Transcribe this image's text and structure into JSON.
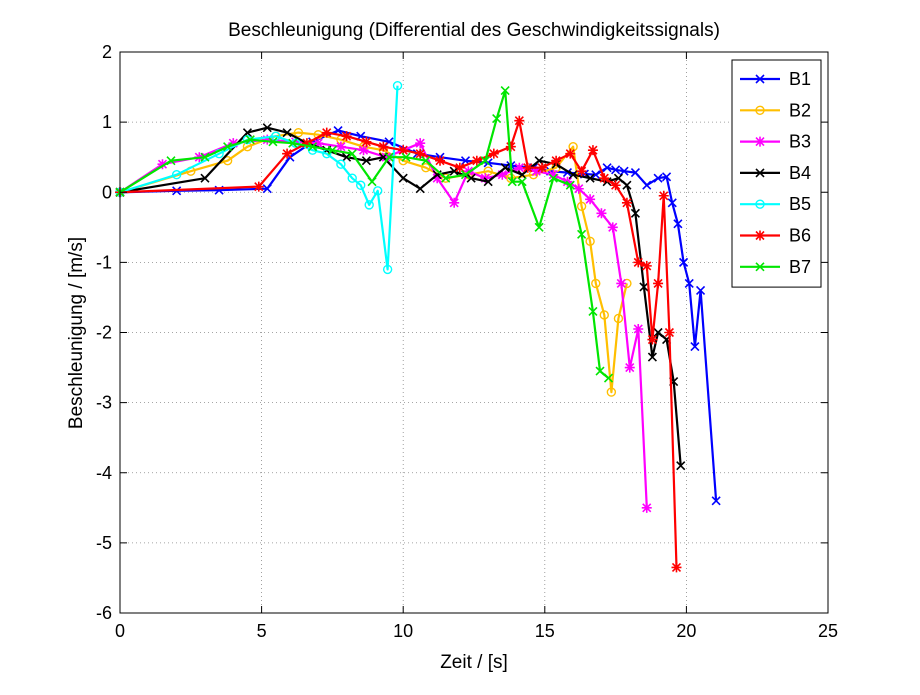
{
  "chart_data": {
    "type": "line",
    "title": "Beschleunigung (Differential des Geschwindigkeitssignals)",
    "xlabel": "Zeit / [s]",
    "ylabel": "Beschleunigung / [m/s]",
    "xlim": [
      0,
      25
    ],
    "ylim": [
      -6,
      2
    ],
    "xticks": [
      0,
      5,
      10,
      15,
      20,
      25
    ],
    "yticks": [
      -6,
      -5,
      -4,
      -3,
      -2,
      -1,
      0,
      1,
      2
    ],
    "grid": true,
    "legend_position": "top-right",
    "series": [
      {
        "name": "B1",
        "color": "#0000ff",
        "marker": "x",
        "x": [
          0,
          2,
          3.5,
          5.2,
          6,
          6.8,
          7.7,
          8.5,
          9.5,
          10.5,
          11.3,
          12.2,
          13,
          13.8,
          14.6,
          15.2,
          15.8,
          16.4,
          16.8,
          17.2,
          17.5,
          17.8,
          18.2,
          18.6,
          19.0,
          19.3,
          19.5,
          19.7,
          19.9,
          20.1,
          20.3,
          20.5,
          21.05
        ],
        "y": [
          0,
          0.02,
          0.03,
          0.05,
          0.5,
          0.72,
          0.88,
          0.8,
          0.72,
          0.55,
          0.5,
          0.45,
          0.42,
          0.38,
          0.35,
          0.3,
          0.28,
          0.26,
          0.25,
          0.35,
          0.32,
          0.3,
          0.28,
          0.1,
          0.2,
          0.22,
          -0.15,
          -0.45,
          -1.0,
          -1.3,
          -2.2,
          -1.4,
          -4.4
        ]
      },
      {
        "name": "B2",
        "color": "#ffbf00",
        "marker": "o",
        "x": [
          0,
          2.5,
          3.8,
          4.5,
          5.5,
          6.3,
          7.0,
          7.8,
          8.6,
          9.3,
          10.0,
          10.8,
          11.5,
          12.3,
          13.0,
          13.8,
          14.6,
          15.4,
          16.0,
          16.3,
          16.6,
          16.8,
          17.1,
          17.35,
          17.6,
          17.9
        ],
        "y": [
          0,
          0.3,
          0.45,
          0.65,
          0.8,
          0.85,
          0.82,
          0.75,
          0.65,
          0.6,
          0.45,
          0.35,
          0.2,
          0.25,
          0.3,
          0.2,
          0.25,
          0.35,
          0.65,
          -0.2,
          -0.7,
          -1.3,
          -1.75,
          -2.85,
          -1.8,
          -1.3
        ]
      },
      {
        "name": "B3",
        "color": "#ff00ff",
        "marker": "*",
        "x": [
          0,
          1.5,
          2.8,
          4.0,
          5.2,
          6.2,
          7.0,
          7.8,
          8.6,
          9.4,
          10.0,
          10.6,
          11.2,
          11.8,
          12.3,
          12.9,
          13.5,
          14.1,
          14.7,
          15.3,
          15.8,
          16.2,
          16.6,
          17.0,
          17.4,
          17.7,
          18.0,
          18.3,
          18.6
        ],
        "y": [
          0,
          0.4,
          0.5,
          0.7,
          0.75,
          0.72,
          0.7,
          0.65,
          0.6,
          0.5,
          0.6,
          0.7,
          0.2,
          -0.15,
          0.3,
          0.2,
          0.25,
          0.35,
          0.3,
          0.25,
          0.15,
          0.05,
          -0.1,
          -0.3,
          -0.5,
          -1.3,
          -2.5,
          -1.95,
          -4.5
        ]
      },
      {
        "name": "B4",
        "color": "#000000",
        "marker": "x",
        "x": [
          0,
          3.0,
          4.5,
          5.2,
          5.9,
          6.6,
          7.3,
          8.0,
          8.7,
          9.3,
          10.0,
          10.6,
          11.2,
          11.8,
          12.4,
          13.0,
          13.6,
          14.2,
          14.8,
          15.4,
          16.0,
          16.6,
          17.2,
          17.6,
          17.9,
          18.2,
          18.5,
          18.8,
          19.0,
          19.3,
          19.55,
          19.8
        ],
        "y": [
          0,
          0.2,
          0.85,
          0.92,
          0.85,
          0.7,
          0.6,
          0.5,
          0.45,
          0.5,
          0.2,
          0.05,
          0.25,
          0.3,
          0.2,
          0.15,
          0.35,
          0.25,
          0.45,
          0.4,
          0.25,
          0.2,
          0.15,
          0.2,
          0.1,
          -0.3,
          -1.35,
          -2.35,
          -2.0,
          -2.1,
          -2.7,
          -3.9
        ]
      },
      {
        "name": "B5",
        "color": "#00ffff",
        "marker": "o",
        "x": [
          0,
          2.0,
          3.5,
          4.5,
          5.5,
          6.2,
          6.8,
          7.3,
          7.8,
          8.2,
          8.5,
          8.8,
          9.1,
          9.45,
          9.8
        ],
        "y": [
          0,
          0.25,
          0.55,
          0.75,
          0.8,
          0.7,
          0.6,
          0.55,
          0.4,
          0.2,
          0.1,
          -0.18,
          0.02,
          -1.1,
          1.52
        ]
      },
      {
        "name": "B6",
        "color": "#ff0000",
        "marker": "*",
        "x": [
          0,
          4.9,
          5.9,
          6.6,
          7.3,
          8.0,
          8.7,
          9.3,
          10.0,
          10.6,
          11.3,
          12.0,
          12.6,
          13.2,
          13.8,
          14.1,
          14.4,
          14.9,
          15.4,
          15.9,
          16.3,
          16.7,
          17.1,
          17.5,
          17.9,
          18.3,
          18.6,
          18.8,
          19.0,
          19.2,
          19.4,
          19.65
        ],
        "y": [
          0,
          0.08,
          0.55,
          0.7,
          0.85,
          0.8,
          0.72,
          0.65,
          0.6,
          0.55,
          0.45,
          0.35,
          0.45,
          0.55,
          0.65,
          1.02,
          0.35,
          0.35,
          0.45,
          0.55,
          0.3,
          0.6,
          0.2,
          0.1,
          -0.15,
          -1.0,
          -1.05,
          -2.1,
          -1.3,
          -0.05,
          -2.0,
          -5.35
        ]
      },
      {
        "name": "B7",
        "color": "#00e600",
        "marker": "x",
        "x": [
          0,
          1.8,
          3.0,
          3.8,
          4.6,
          5.4,
          6.1,
          6.8,
          7.5,
          8.2,
          8.9,
          9.5,
          10.1,
          10.8,
          11.5,
          12.2,
          12.9,
          13.3,
          13.6,
          13.85,
          14.2,
          14.8,
          15.3,
          15.9,
          16.3,
          16.7,
          16.95,
          17.25
        ],
        "y": [
          0,
          0.45,
          0.5,
          0.65,
          0.75,
          0.72,
          0.7,
          0.65,
          0.6,
          0.55,
          0.15,
          0.5,
          0.5,
          0.45,
          0.2,
          0.25,
          0.45,
          1.05,
          1.45,
          0.15,
          0.15,
          -0.5,
          0.2,
          0.1,
          -0.6,
          -1.7,
          -2.55,
          -2.65
        ]
      }
    ]
  }
}
